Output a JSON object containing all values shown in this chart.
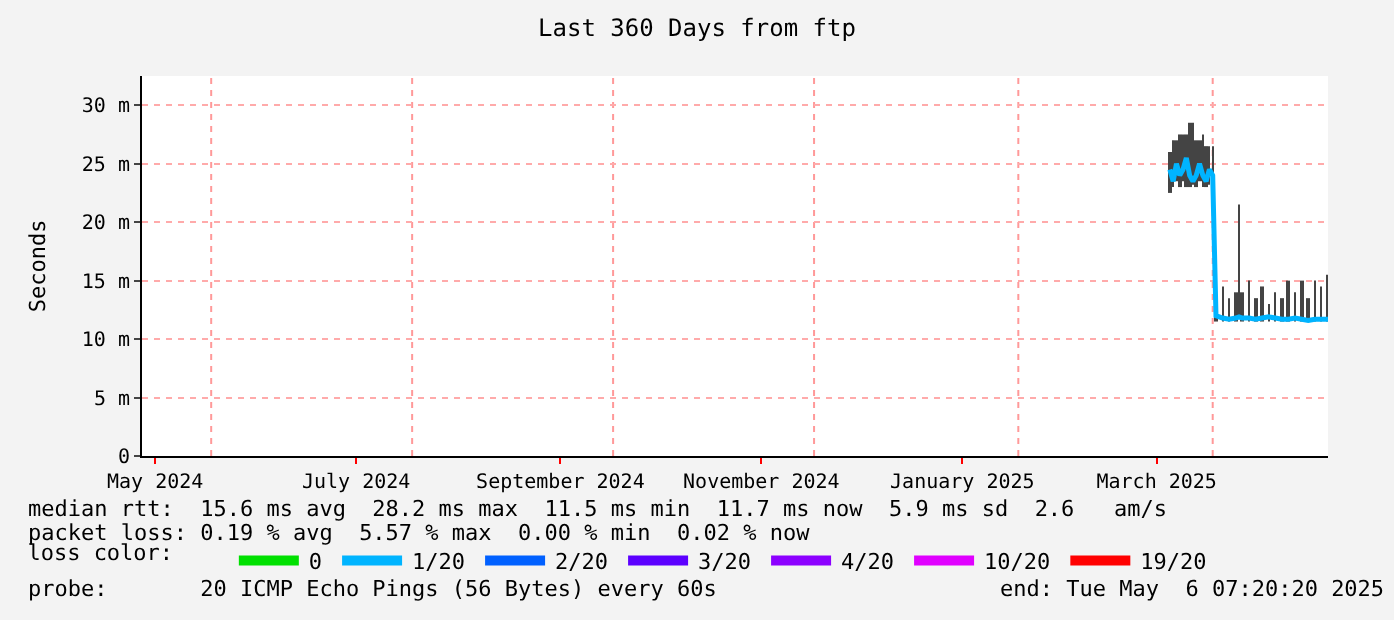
{
  "chart_data": {
    "type": "line",
    "title": "Last 360 Days from ftp",
    "ylabel": "Seconds",
    "legend_title": "loss color:",
    "legend": "bottom",
    "line_style": "solid",
    "marker": "none",
    "x": [
      "2025-03-19",
      "2025-03-20",
      "2025-03-21",
      "2025-03-22",
      "2025-03-23",
      "2025-03-24",
      "2025-03-25",
      "2025-03-26",
      "2025-03-27",
      "2025-03-28",
      "2025-03-29",
      "2025-03-30",
      "2025-03-31",
      "2025-04-01",
      "2025-04-02",
      "2025-04-04",
      "2025-04-06",
      "2025-04-08",
      "2025-04-09",
      "2025-04-10",
      "2025-04-12",
      "2025-04-14",
      "2025-04-16",
      "2025-04-18",
      "2025-04-20",
      "2025-04-22",
      "2025-04-24",
      "2025-04-26",
      "2025-04-28",
      "2025-04-30",
      "2025-05-02",
      "2025-05-04",
      "2025-05-06"
    ],
    "xlim": [
      "2024-05-11",
      "2025-05-06"
    ],
    "xticks": [
      {
        "value": "2024-05-15",
        "label": "May 2024"
      },
      {
        "value": "2024-07-15",
        "label": "July 2024"
      },
      {
        "value": "2024-09-15",
        "label": "September 2024"
      },
      {
        "value": "2024-11-15",
        "label": "November 2024"
      },
      {
        "value": "2025-01-15",
        "label": "January 2025"
      },
      {
        "value": "2025-03-15",
        "label": "March 2025"
      }
    ],
    "ref_lines": [
      {
        "axis": "x",
        "value": "2024-06-01",
        "color": "#ff9999",
        "line_style": "dotted"
      },
      {
        "axis": "x",
        "value": "2024-08-01",
        "color": "#ff9999",
        "line_style": "dotted"
      },
      {
        "axis": "x",
        "value": "2024-10-01",
        "color": "#ff9999",
        "line_style": "dotted"
      },
      {
        "axis": "x",
        "value": "2024-12-01",
        "color": "#ff9999",
        "line_style": "dotted"
      },
      {
        "axis": "x",
        "value": "2025-02-01",
        "color": "#ff9999",
        "line_style": "dotted"
      },
      {
        "axis": "x",
        "value": "2025-04-01",
        "color": "#ff9999",
        "line_style": "dotted"
      }
    ],
    "grid": "y",
    "ylim": [
      0,
      32.5
    ],
    "yticks": [
      {
        "value": 0,
        "label": "0"
      },
      {
        "value": 5,
        "label": "5 m"
      },
      {
        "value": 10,
        "label": "10 m"
      },
      {
        "value": 15,
        "label": "15 m"
      },
      {
        "value": 20,
        "label": "20 m"
      },
      {
        "value": 25,
        "label": "25 m"
      },
      {
        "value": 30,
        "label": "30 m"
      }
    ],
    "series": [
      {
        "type": "bar",
        "color": "#444444",
        "base": [
          22.5,
          23,
          23.5,
          23,
          23.5,
          23,
          23,
          23.2,
          23,
          23.5,
          23,
          23,
          23.2,
          23,
          11.5,
          11.5,
          11.5,
          11.5,
          11.8,
          11.5,
          11.5,
          11.5,
          11.5,
          11.5,
          11.5,
          11.5,
          11.5,
          11.5,
          11.5,
          11.5,
          11.5,
          11.5,
          11.5
        ],
        "values": [
          3.5,
          4,
          3.5,
          4.5,
          4,
          4.5,
          5.5,
          5.3,
          4,
          3.5,
          4.5,
          3.5,
          3.3,
          3.5,
          0.5,
          3,
          2,
          2.5,
          9.7,
          2.5,
          3.5,
          2,
          3,
          1.5,
          2.5,
          2,
          3.5,
          2.5,
          3.5,
          2,
          3.5,
          3,
          4
        ]
      },
      {
        "name": "0",
        "color": "#00e000",
        "values": [
          null,
          null,
          null,
          null,
          null,
          null,
          null,
          null,
          null,
          null,
          null,
          null,
          null,
          null,
          null,
          null,
          null,
          null,
          null,
          null,
          null,
          null,
          null,
          null,
          null,
          null,
          null,
          null,
          null,
          null,
          null,
          null,
          null
        ]
      },
      {
        "name": "1/20",
        "color": "#00b4ff",
        "values": [
          24.5,
          23.5,
          25,
          24,
          24.5,
          25.5,
          24,
          23.5,
          24,
          25,
          24,
          23.5,
          24.5,
          24,
          12,
          11.8,
          11.7,
          11.8,
          11.9,
          11.8,
          11.8,
          11.7,
          11.8,
          11.9,
          11.8,
          11.7,
          11.7,
          11.8,
          11.7,
          11.6,
          11.7,
          11.7,
          11.7
        ]
      },
      {
        "name": "2/20",
        "color": "#0060ff",
        "values": [
          null,
          null,
          null,
          null,
          null,
          null,
          null,
          null,
          null,
          null,
          null,
          null,
          null,
          null,
          null,
          null,
          null,
          null,
          null,
          null,
          null,
          null,
          null,
          null,
          null,
          null,
          null,
          null,
          null,
          null,
          null,
          null,
          null
        ]
      },
      {
        "name": "3/20",
        "color": "#5c00ff",
        "values": [
          null,
          null,
          null,
          null,
          null,
          null,
          null,
          null,
          null,
          null,
          null,
          null,
          null,
          null,
          null,
          null,
          null,
          null,
          null,
          null,
          null,
          null,
          null,
          null,
          null,
          null,
          null,
          null,
          null,
          null,
          null,
          null,
          null
        ]
      },
      {
        "name": "4/20",
        "color": "#8c00ff",
        "values": [
          null,
          null,
          null,
          null,
          null,
          null,
          null,
          null,
          null,
          null,
          null,
          null,
          null,
          null,
          null,
          null,
          null,
          null,
          null,
          null,
          null,
          null,
          null,
          null,
          null,
          null,
          null,
          null,
          null,
          null,
          null,
          null,
          null
        ]
      },
      {
        "name": "10/20",
        "color": "#e000ff",
        "values": [
          null,
          null,
          null,
          null,
          null,
          null,
          null,
          null,
          null,
          null,
          null,
          null,
          null,
          null,
          null,
          null,
          null,
          null,
          null,
          null,
          null,
          null,
          null,
          null,
          null,
          null,
          null,
          null,
          null,
          null,
          null,
          null,
          null
        ]
      },
      {
        "name": "19/20",
        "color": "#ff0000",
        "values": [
          null,
          null,
          null,
          null,
          null,
          null,
          null,
          null,
          null,
          null,
          null,
          null,
          null,
          null,
          null,
          null,
          null,
          null,
          null,
          null,
          null,
          null,
          null,
          null,
          null,
          null,
          null,
          null,
          null,
          null,
          null,
          null,
          null
        ]
      }
    ],
    "annotations": [
      "median rtt:  15.6 ms avg  28.2 ms max  11.5 ms min  11.7 ms now  5.9 ms sd  2.6   am/s",
      "packet loss: 0.19 % avg  5.57 % max  0.00 % min  0.02 % now",
      "probe:       20 ICMP Echo Pings (56 Bytes) every 60s",
      "end: Tue May  6 07:20:20 2025"
    ]
  }
}
